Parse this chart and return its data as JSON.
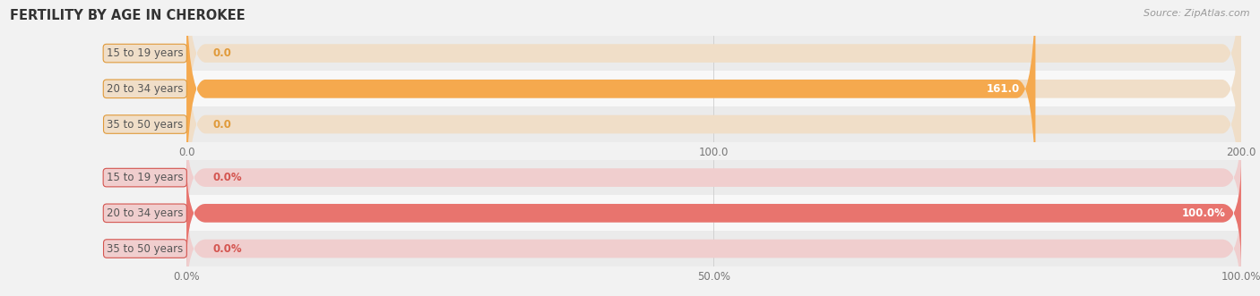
{
  "title": "FERTILITY BY AGE IN CHEROKEE",
  "source_text": "Source: ZipAtlas.com",
  "top_chart": {
    "categories": [
      "35 to 50 years",
      "20 to 34 years",
      "15 to 19 years"
    ],
    "values": [
      0.0,
      161.0,
      0.0
    ],
    "xlim": [
      0.0,
      200.0
    ],
    "xticks": [
      0.0,
      100.0,
      200.0
    ],
    "xtick_labels": [
      "0.0",
      "100.0",
      "200.0"
    ],
    "bar_color": "#F5A94E",
    "bar_bg_color": "#F0DEC8",
    "label_color": "#E09A3A",
    "bar_height": 0.52,
    "value_labels": [
      "0.0",
      "161.0",
      "0.0"
    ],
    "value_label_inside": [
      false,
      true,
      false
    ]
  },
  "bottom_chart": {
    "categories": [
      "35 to 50 years",
      "20 to 34 years",
      "15 to 19 years"
    ],
    "values": [
      0.0,
      100.0,
      0.0
    ],
    "xlim": [
      0.0,
      100.0
    ],
    "xticks": [
      0.0,
      50.0,
      100.0
    ],
    "xtick_labels": [
      "0.0%",
      "50.0%",
      "100.0%"
    ],
    "bar_color": "#E8746E",
    "bar_bg_color": "#F0CECE",
    "label_color": "#D45550",
    "bar_height": 0.52,
    "value_labels": [
      "0.0%",
      "100.0%",
      "0.0%"
    ],
    "value_label_inside": [
      false,
      true,
      false
    ]
  },
  "bg_color": "#f2f2f2",
  "row_colors": [
    "#ebebeb",
    "#f8f8f8",
    "#ebebeb"
  ],
  "label_font_size": 8.5,
  "tick_font_size": 8.5,
  "title_font_size": 10.5,
  "value_font_size": 8.5
}
